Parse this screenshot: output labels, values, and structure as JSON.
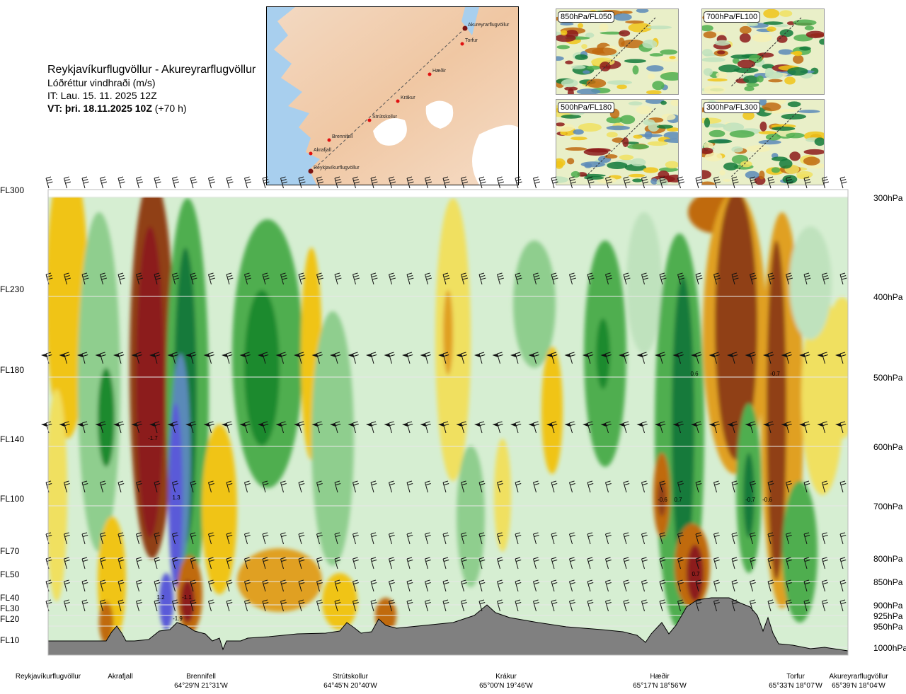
{
  "header": {
    "route": "Reykjavíkurflugvöllur - Akureyrarflugvöllur",
    "parameter": "Lóðréttur vindhraði (m/s)",
    "issue_time": "IT: Lau. 15. 11. 2025 12Z",
    "valid_time": "VT: þri. 18.11.2025 10Z",
    "lead_time": "(+70 h)"
  },
  "map": {
    "waypoints": [
      "Akureyrarflugvöllur",
      "Torfur",
      "Hæðir",
      "Krákur",
      "Strútskollur",
      "Brennifell",
      "Akrafjall",
      "Reykjavíkurflugvöllur"
    ]
  },
  "insets": [
    {
      "label": "850hPa/FL050"
    },
    {
      "label": "700hPa/FL100"
    },
    {
      "label": "500hPa/FL180"
    },
    {
      "label": "300hPa/FL300"
    }
  ],
  "chart_data": {
    "type": "heatmap",
    "title": "Lóðréttur vindhraði (m/s)",
    "xlabel": "",
    "ylabel": "",
    "flight_levels": [
      {
        "fl": "FL300",
        "hpa": "300hPa"
      },
      {
        "fl": "FL230",
        "hpa": "400hPa"
      },
      {
        "fl": "FL180",
        "hpa": "500hPa"
      },
      {
        "fl": "FL140",
        "hpa": "600hPa"
      },
      {
        "fl": "FL100",
        "hpa": "700hPa"
      },
      {
        "fl": "FL70",
        "hpa": "800hPa"
      },
      {
        "fl": "FL50",
        "hpa": "850hPa"
      },
      {
        "fl": "FL40",
        "hpa": "900hPa"
      },
      {
        "fl": "FL30",
        "hpa": "925hPa"
      },
      {
        "fl": "FL20",
        "hpa": "950hPa"
      },
      {
        "fl": "FL10",
        "hpa": "1000hPa"
      }
    ],
    "locations": [
      {
        "name": "Reykjavíkurflugvöllur",
        "coord": ""
      },
      {
        "name": "Akrafjall",
        "coord": ""
      },
      {
        "name": "Brennifell",
        "coord": "64°29'N 21°31'W"
      },
      {
        "name": "Strútskollur",
        "coord": "64°45'N 20°40'W"
      },
      {
        "name": "Krákur",
        "coord": "65°00'N 19°46'W"
      },
      {
        "name": "Hæðir",
        "coord": "65°17'N 18°56'W"
      },
      {
        "name": "Torfur",
        "coord": "65°33'N 18°07'W"
      },
      {
        "name": "Akureyrarflugvöllur",
        "coord": "65°39'N 18°04'W"
      }
    ],
    "annotations": [
      "-1.7",
      "1.3",
      "1.2",
      "-1.1",
      "-1.9",
      "-0.6",
      "0.7",
      "0.6",
      "0.7",
      "-0.7",
      "-0.6",
      "-0.7"
    ]
  }
}
